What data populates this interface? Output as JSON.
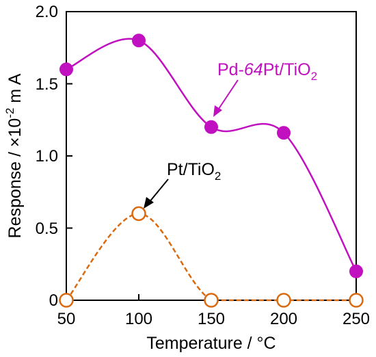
{
  "chart_data": {
    "type": "line",
    "xlabel": "Temperature / °C",
    "ylabel": "Response / ×10",
    "ylabel_exponent": "-2",
    "ylabel_unit": "m A",
    "xlim": [
      50,
      250
    ],
    "ylim": [
      0,
      2.0
    ],
    "xticks": [
      "50",
      "100",
      "150",
      "200",
      "250"
    ],
    "yticks": [
      "0",
      "0.5",
      "1.0",
      "1.5",
      "2.0"
    ],
    "grid": false,
    "series": [
      {
        "name": "Pd-64Pt/TiO2",
        "label_parts": {
          "a": "Pd-",
          "b": "64",
          "c": "Pt/TiO",
          "sub": "2"
        },
        "color": "#c010c0",
        "marker": "filled-circle",
        "line": "solid",
        "x": [
          50,
          100,
          150,
          200,
          250
        ],
        "y": [
          1.6,
          1.8,
          1.2,
          1.16,
          0.2
        ]
      },
      {
        "name": "Pt/TiO2",
        "label_parts": {
          "a": "Pt/TiO",
          "sub": "2"
        },
        "color": "#d96a10",
        "marker": "open-circle",
        "line": "dashed",
        "x": [
          50,
          100,
          150,
          200,
          250
        ],
        "y": [
          0,
          0.6,
          0,
          0,
          0
        ]
      }
    ]
  }
}
